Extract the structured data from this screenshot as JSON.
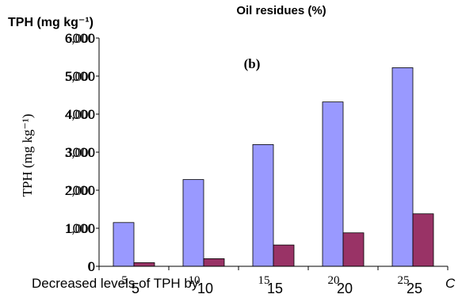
{
  "chart_data": {
    "type": "bar",
    "title": "Oil residues (%)",
    "panel_label": "(b)",
    "y_title_top": "TPH (mg kg⁻¹)",
    "ylabel": "TPH (mg kg⁻¹)",
    "xlabel": "Decreased levels of TPH by",
    "xlabel_trailing": "C",
    "ylim": [
      0,
      6000
    ],
    "yticks": [
      "0",
      "1000",
      "2000",
      "3000",
      "4000",
      "5000",
      "6000"
    ],
    "yticks_overlay": [
      "0",
      "1,000",
      "2,000",
      "3,000",
      "4,000",
      "5,000",
      "6,000"
    ],
    "categories": [
      "5",
      "10",
      "15",
      "20",
      "25"
    ],
    "categories_overlay": [
      "5",
      "10",
      "15",
      "20",
      "25"
    ],
    "series": [
      {
        "values": [
          1150,
          2280,
          3200,
          4320,
          5220
        ],
        "color": "#9999ff"
      },
      {
        "values": [
          95,
          200,
          560,
          880,
          1380
        ],
        "color": "#993366"
      }
    ],
    "grid": false
  }
}
